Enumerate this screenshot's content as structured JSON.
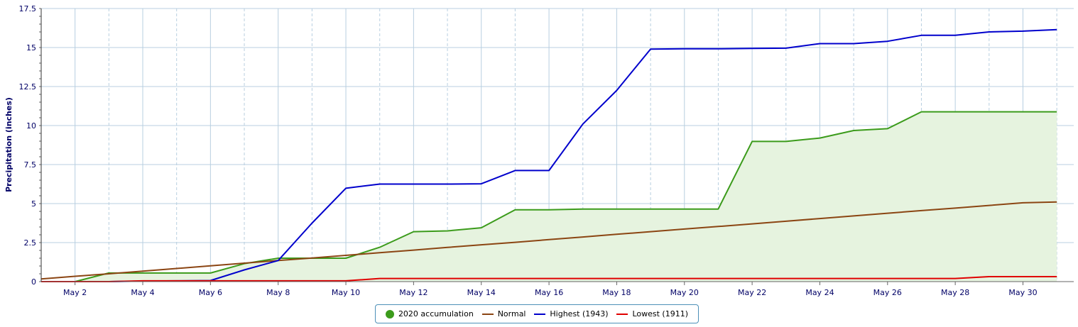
{
  "chart_data": {
    "type": "line",
    "title": "",
    "xlabel": "",
    "ylabel": "Precipitation (inches)",
    "ylim": [
      0,
      17.5
    ],
    "yticks": [
      0,
      2.5,
      5,
      7.5,
      10,
      12.5,
      15,
      17.5
    ],
    "ytick_labels": [
      "0",
      "2.5",
      "5",
      "7.5",
      "10",
      "12.5",
      "15",
      "17.5"
    ],
    "xlim": [
      1,
      31.5
    ],
    "x": [
      1,
      2,
      3,
      4,
      5,
      6,
      7,
      8,
      9,
      10,
      11,
      12,
      13,
      14,
      15,
      16,
      17,
      18,
      19,
      20,
      21,
      22,
      23,
      24,
      25,
      26,
      27,
      28,
      29,
      30,
      31
    ],
    "xticks": [
      2,
      4,
      6,
      8,
      10,
      12,
      14,
      16,
      18,
      20,
      22,
      24,
      26,
      28,
      30
    ],
    "xtick_labels": [
      "May 2",
      "May 4",
      "May 6",
      "May 8",
      "May 10",
      "May 12",
      "May 14",
      "May 16",
      "May 18",
      "May 20",
      "May 22",
      "May 24",
      "May 26",
      "May 28",
      "May 30"
    ],
    "grid": true,
    "legend_position": "bottom-center",
    "series": [
      {
        "name": "2020 accumulation",
        "kind": "area",
        "color": "#3b9b1b",
        "fill": "#e6f3df",
        "values": [
          0,
          0,
          0.55,
          0.55,
          0.55,
          0.55,
          1.15,
          1.5,
          1.5,
          1.5,
          2.2,
          3.2,
          3.25,
          3.45,
          4.6,
          4.6,
          4.65,
          4.65,
          4.65,
          4.65,
          4.65,
          8.98,
          8.98,
          9.2,
          9.68,
          9.8,
          10.88,
          10.88,
          10.88,
          10.88,
          10.88
        ]
      },
      {
        "name": "Normal",
        "kind": "line",
        "color": "#8b4513",
        "values": [
          0.17,
          0.34,
          0.5,
          0.67,
          0.84,
          1.01,
          1.18,
          1.35,
          1.51,
          1.68,
          1.85,
          2.02,
          2.19,
          2.36,
          2.52,
          2.69,
          2.86,
          3.03,
          3.2,
          3.37,
          3.53,
          3.7,
          3.87,
          4.04,
          4.21,
          4.38,
          4.55,
          4.71,
          4.88,
          5.05,
          5.1
        ]
      },
      {
        "name": "Highest (1943)",
        "kind": "line",
        "color": "#0000cc",
        "values": [
          0,
          0,
          0,
          0.03,
          0.05,
          0.07,
          0.75,
          1.35,
          3.75,
          5.98,
          6.25,
          6.25,
          6.25,
          6.27,
          7.12,
          7.12,
          10.1,
          12.25,
          14.9,
          14.92,
          14.92,
          14.94,
          14.96,
          15.25,
          15.25,
          15.4,
          15.78,
          15.78,
          16.0,
          16.05,
          16.15
        ]
      },
      {
        "name": "Lowest (1911)",
        "kind": "line",
        "color": "#e00000",
        "values": [
          0,
          0,
          0,
          0.05,
          0.05,
          0.05,
          0.05,
          0.05,
          0.05,
          0.05,
          0.2,
          0.2,
          0.2,
          0.2,
          0.2,
          0.2,
          0.2,
          0.2,
          0.2,
          0.2,
          0.2,
          0.2,
          0.2,
          0.2,
          0.2,
          0.2,
          0.2,
          0.2,
          0.32,
          0.32,
          0.32
        ]
      }
    ]
  }
}
